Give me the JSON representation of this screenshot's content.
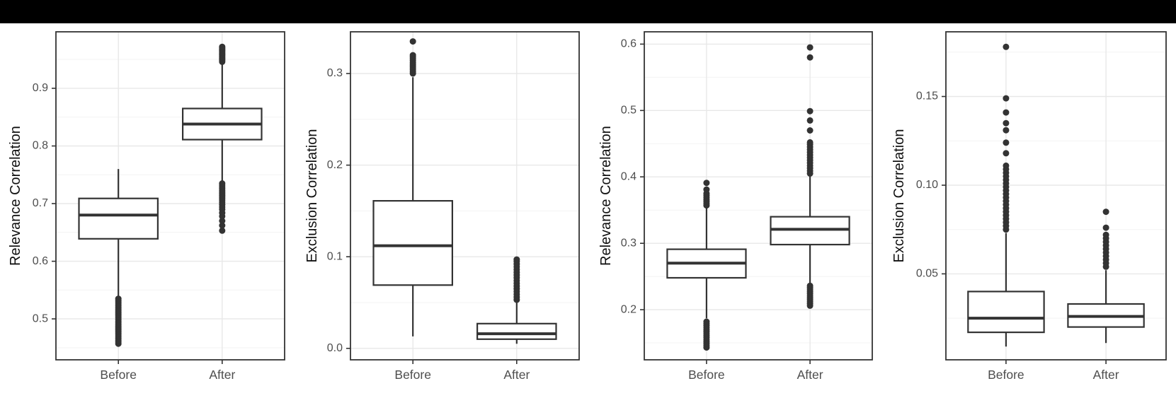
{
  "page": {
    "background": "#ffffff",
    "top_bar_color": "#000000"
  },
  "colors": {
    "panel_bg": "#ffffff",
    "panel_border": "#333333",
    "grid_major": "#e8e8e8",
    "grid_minor": "#f3f3f3",
    "box_stroke": "#333333",
    "box_fill": "#ffffff",
    "outlier": "#333333",
    "tick_mark": "#333333",
    "tick_label": "#4d4d4d",
    "axis_title": "#111111"
  },
  "chart_data": [
    {
      "type": "boxplot",
      "ylabel": "Relevance Correlation",
      "categories": [
        "Before",
        "After"
      ],
      "ylim": [
        0.429,
        0.998
      ],
      "yticks": [
        0.5,
        0.6,
        0.7,
        0.8,
        0.9
      ],
      "ytick_labels": [
        "0.5",
        "0.6",
        "0.7",
        "0.8",
        "0.9"
      ],
      "grid": true,
      "legend": "none",
      "boxes": [
        {
          "category": "Before",
          "whisker_low": 0.538,
          "q1": 0.639,
          "median": 0.68,
          "q3": 0.709,
          "whisker_high": 0.76,
          "outliers_low": [
            0.457,
            0.46,
            0.463,
            0.466,
            0.469,
            0.472,
            0.475,
            0.478,
            0.481,
            0.484,
            0.487,
            0.49,
            0.493,
            0.496,
            0.499,
            0.502,
            0.505,
            0.508,
            0.511,
            0.514,
            0.517,
            0.52,
            0.523,
            0.526,
            0.529,
            0.532,
            0.535
          ],
          "outliers_high": []
        },
        {
          "category": "After",
          "whisker_low": 0.737,
          "q1": 0.811,
          "median": 0.838,
          "q3": 0.865,
          "whisker_high": 0.944,
          "outliers_low": [
            0.653,
            0.662,
            0.67,
            0.678,
            0.684,
            0.69,
            0.694,
            0.698,
            0.702,
            0.705,
            0.708,
            0.711,
            0.714,
            0.717,
            0.72,
            0.723,
            0.726,
            0.729,
            0.732,
            0.735
          ],
          "outliers_high": [
            0.946,
            0.948,
            0.95,
            0.952,
            0.954,
            0.956,
            0.958,
            0.96,
            0.962,
            0.964,
            0.966,
            0.968,
            0.97,
            0.972
          ]
        }
      ]
    },
    {
      "type": "boxplot",
      "ylabel": "Exclusion Correlation",
      "categories": [
        "Before",
        "After"
      ],
      "ylim": [
        -0.0125,
        0.3455
      ],
      "yticks": [
        0.0,
        0.1,
        0.2,
        0.3
      ],
      "ytick_labels": [
        "0.0",
        "0.1",
        "0.2",
        "0.3"
      ],
      "grid": true,
      "legend": "none",
      "boxes": [
        {
          "category": "Before",
          "whisker_low": 0.013,
          "q1": 0.069,
          "median": 0.112,
          "q3": 0.161,
          "whisker_high": 0.296,
          "outliers_low": [],
          "outliers_high": [
            0.3,
            0.302,
            0.304,
            0.306,
            0.308,
            0.31,
            0.312,
            0.314,
            0.316,
            0.318,
            0.32,
            0.335
          ]
        },
        {
          "category": "After",
          "whisker_low": 0.005,
          "q1": 0.01,
          "median": 0.016,
          "q3": 0.027,
          "whisker_high": 0.05,
          "outliers_low": [],
          "outliers_high": [
            0.053,
            0.056,
            0.059,
            0.062,
            0.065,
            0.068,
            0.071,
            0.074,
            0.077,
            0.08,
            0.083,
            0.086,
            0.089,
            0.092,
            0.095,
            0.097
          ]
        }
      ]
    },
    {
      "type": "boxplot",
      "ylabel": "Relevance Correlation",
      "categories": [
        "Before",
        "After"
      ],
      "ylim": [
        0.1245,
        0.6185
      ],
      "yticks": [
        0.2,
        0.3,
        0.4,
        0.5,
        0.6
      ],
      "ytick_labels": [
        "0.2",
        "0.3",
        "0.4",
        "0.5",
        "0.6"
      ],
      "grid": true,
      "legend": "none",
      "boxes": [
        {
          "category": "Before",
          "whisker_low": 0.187,
          "q1": 0.248,
          "median": 0.27,
          "q3": 0.291,
          "whisker_high": 0.353,
          "outliers_low": [
            0.143,
            0.146,
            0.149,
            0.152,
            0.155,
            0.158,
            0.161,
            0.164,
            0.167,
            0.17,
            0.173,
            0.176,
            0.179,
            0.182
          ],
          "outliers_high": [
            0.357,
            0.36,
            0.363,
            0.366,
            0.369,
            0.372,
            0.375,
            0.381,
            0.391
          ]
        },
        {
          "category": "After",
          "whisker_low": 0.24,
          "q1": 0.298,
          "median": 0.321,
          "q3": 0.34,
          "whisker_high": 0.402,
          "outliers_low": [
            0.206,
            0.209,
            0.212,
            0.215,
            0.218,
            0.221,
            0.224,
            0.227,
            0.23,
            0.233,
            0.236
          ],
          "outliers_high": [
            0.405,
            0.409,
            0.413,
            0.417,
            0.421,
            0.425,
            0.429,
            0.433,
            0.437,
            0.441,
            0.445,
            0.449,
            0.452,
            0.47,
            0.485,
            0.499,
            0.58,
            0.595
          ]
        }
      ]
    },
    {
      "type": "boxplot",
      "ylabel": "Exclusion Correlation",
      "categories": [
        "Before",
        "After"
      ],
      "ylim": [
        0.0015,
        0.1865
      ],
      "yticks": [
        0.05,
        0.1,
        0.15
      ],
      "ytick_labels": [
        "0.05",
        "0.10",
        "0.15"
      ],
      "grid": true,
      "legend": "none",
      "boxes": [
        {
          "category": "Before",
          "whisker_low": 0.009,
          "q1": 0.017,
          "median": 0.025,
          "q3": 0.04,
          "whisker_high": 0.073,
          "outliers_low": [],
          "outliers_high": [
            0.075,
            0.077,
            0.079,
            0.081,
            0.083,
            0.085,
            0.087,
            0.089,
            0.091,
            0.093,
            0.095,
            0.097,
            0.099,
            0.101,
            0.103,
            0.105,
            0.107,
            0.109,
            0.111,
            0.118,
            0.124,
            0.131,
            0.135,
            0.141,
            0.149,
            0.178
          ]
        },
        {
          "category": "After",
          "whisker_low": 0.011,
          "q1": 0.02,
          "median": 0.026,
          "q3": 0.033,
          "whisker_high": 0.052,
          "outliers_low": [],
          "outliers_high": [
            0.054,
            0.056,
            0.058,
            0.06,
            0.062,
            0.064,
            0.066,
            0.068,
            0.07,
            0.072,
            0.076,
            0.085
          ]
        }
      ]
    }
  ]
}
